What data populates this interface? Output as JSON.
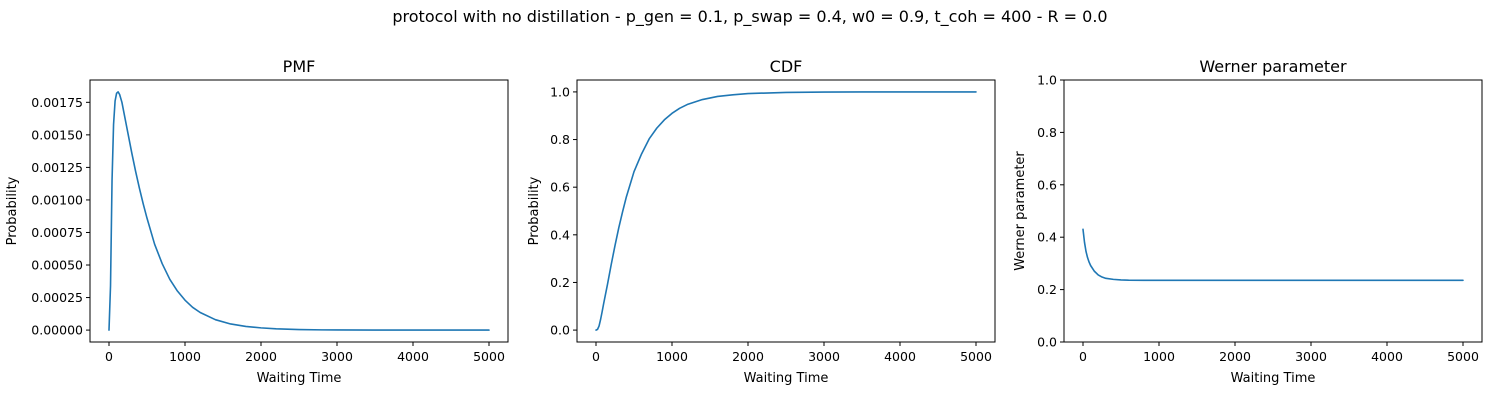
{
  "suptitle": "protocol with no distillation - p_gen = 0.1, p_swap = 0.4, w0 = 0.9, t_coh = 400 - R = 0.0",
  "colors": {
    "line": "#1f77b4"
  },
  "chart_data": [
    {
      "type": "line",
      "title": "PMF",
      "xlabel": "Waiting Time",
      "ylabel": "Probability",
      "xlim": [
        -250,
        5250
      ],
      "ylim": [
        -9.15e-05,
        0.0019215
      ],
      "xticks": [
        0,
        1000,
        2000,
        3000,
        4000,
        5000
      ],
      "xtick_labels": [
        "0",
        "1000",
        "2000",
        "3000",
        "4000",
        "5000"
      ],
      "yticks": [
        0,
        0.00025,
        0.0005,
        0.00075,
        0.001,
        0.00125,
        0.0015,
        0.00175
      ],
      "ytick_labels": [
        "0.00000",
        "0.00025",
        "0.00050",
        "0.00075",
        "0.00100",
        "0.00125",
        "0.00150",
        "0.00175"
      ],
      "series": [
        {
          "x": [
            0,
            20,
            40,
            60,
            80,
            100,
            120,
            140,
            170,
            200,
            250,
            300,
            350,
            400,
            450,
            500,
            600,
            700,
            800,
            900,
            1000,
            1100,
            1200,
            1400,
            1600,
            1800,
            2000,
            2200,
            2500,
            2800,
            3000,
            3500,
            4000,
            4500,
            5000
          ],
          "y": [
            0,
            0.00034,
            0.00115,
            0.00158,
            0.00176,
            0.00182,
            0.00183,
            0.00181,
            0.00175,
            0.00166,
            0.00151,
            0.00136,
            0.00122,
            0.00109,
            0.00097,
            0.00086,
            0.00066,
            0.00051,
            0.00039,
            0.0003,
            0.00023,
            0.000175,
            0.000135,
            8e-05,
            4.7e-05,
            2.8e-05,
            1.7e-05,
            1e-05,
            4e-06,
            1.6e-06,
            1e-06,
            2e-07,
            5e-08,
            1e-08,
            0
          ]
        }
      ]
    },
    {
      "type": "line",
      "title": "CDF",
      "xlabel": "Waiting Time",
      "ylabel": "Probability",
      "xlim": [
        -250,
        5250
      ],
      "ylim": [
        -0.05,
        1.05
      ],
      "xticks": [
        0,
        1000,
        2000,
        3000,
        4000,
        5000
      ],
      "xtick_labels": [
        "0",
        "1000",
        "2000",
        "3000",
        "4000",
        "5000"
      ],
      "yticks": [
        0,
        0.2,
        0.4,
        0.6,
        0.8,
        1.0
      ],
      "ytick_labels": [
        "0.0",
        "0.2",
        "0.4",
        "0.6",
        "0.8",
        "1.0"
      ],
      "series": [
        {
          "x": [
            0,
            20,
            40,
            60,
            80,
            100,
            150,
            200,
            250,
            300,
            350,
            400,
            500,
            600,
            700,
            800,
            900,
            1000,
            1100,
            1200,
            1400,
            1600,
            1800,
            2000,
            2500,
            3000,
            3500,
            4000,
            5000
          ],
          "y": [
            0,
            0.003,
            0.017,
            0.044,
            0.076,
            0.11,
            0.19,
            0.275,
            0.355,
            0.43,
            0.497,
            0.56,
            0.665,
            0.74,
            0.803,
            0.848,
            0.883,
            0.91,
            0.931,
            0.947,
            0.968,
            0.981,
            0.988,
            0.993,
            0.998,
            0.9995,
            0.9999,
            1.0,
            1.0
          ]
        }
      ]
    },
    {
      "type": "line",
      "title": "Werner parameter",
      "xlabel": "Waiting Time",
      "ylabel": "Werner parameter",
      "xlim": [
        -250,
        5250
      ],
      "ylim": [
        0.0,
        1.0
      ],
      "xticks": [
        0,
        1000,
        2000,
        3000,
        4000,
        5000
      ],
      "xtick_labels": [
        "0",
        "1000",
        "2000",
        "3000",
        "4000",
        "5000"
      ],
      "yticks": [
        0,
        0.2,
        0.4,
        0.6,
        0.8,
        1.0
      ],
      "ytick_labels": [
        "0.0",
        "0.2",
        "0.4",
        "0.6",
        "0.8",
        "1.0"
      ],
      "series": [
        {
          "x": [
            0,
            20,
            40,
            60,
            80,
            100,
            150,
            200,
            250,
            300,
            400,
            500,
            600,
            800,
            1000,
            1500,
            2000,
            3000,
            4000,
            5000
          ],
          "y": [
            0.43,
            0.38,
            0.345,
            0.322,
            0.305,
            0.292,
            0.27,
            0.256,
            0.248,
            0.243,
            0.239,
            0.237,
            0.236,
            0.2355,
            0.2355,
            0.2355,
            0.2355,
            0.2355,
            0.2355,
            0.2355
          ]
        }
      ]
    }
  ]
}
